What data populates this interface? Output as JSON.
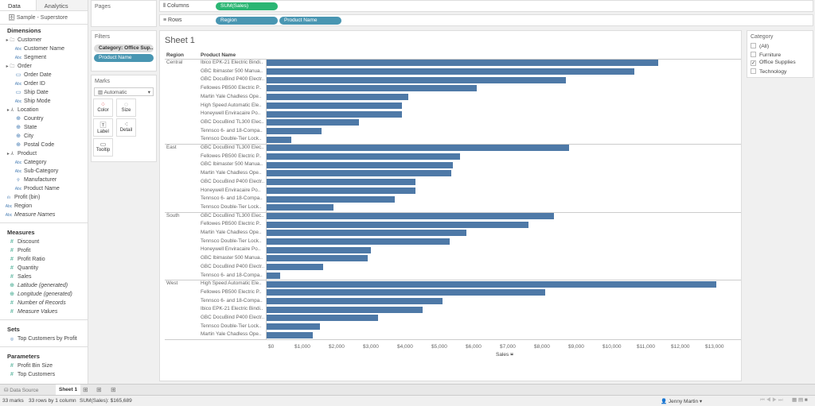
{
  "left": {
    "tabs": [
      "Data",
      "Analytics"
    ],
    "datasource": "Sample - Superstore",
    "dimensions_title": "Dimensions",
    "dimensions": [
      {
        "label": "Customer",
        "type": "folder"
      },
      {
        "label": "Customer Name",
        "type": "abc",
        "indent": 1
      },
      {
        "label": "Segment",
        "type": "abc",
        "indent": 1
      },
      {
        "label": "Order",
        "type": "folder"
      },
      {
        "label": "Order Date",
        "type": "date",
        "indent": 1
      },
      {
        "label": "Order ID",
        "type": "abc",
        "indent": 1
      },
      {
        "label": "Ship Date",
        "type": "date",
        "indent": 1
      },
      {
        "label": "Ship Mode",
        "type": "abc",
        "indent": 1
      },
      {
        "label": "Location",
        "type": "hier"
      },
      {
        "label": "Country",
        "type": "geo",
        "indent": 1
      },
      {
        "label": "State",
        "type": "geo",
        "indent": 1
      },
      {
        "label": "City",
        "type": "geo",
        "indent": 1
      },
      {
        "label": "Postal Code",
        "type": "geo",
        "indent": 1
      },
      {
        "label": "Product",
        "type": "hier"
      },
      {
        "label": "Category",
        "type": "abc",
        "indent": 1
      },
      {
        "label": "Sub-Category",
        "type": "abc",
        "indent": 1
      },
      {
        "label": "Manufacturer",
        "type": "link",
        "indent": 1
      },
      {
        "label": "Product Name",
        "type": "abc",
        "indent": 1
      },
      {
        "label": "Profit (bin)",
        "type": "bin"
      },
      {
        "label": "Region",
        "type": "abc"
      },
      {
        "label": "Measure Names",
        "type": "abc",
        "italic": true
      }
    ],
    "measures_title": "Measures",
    "measures": [
      {
        "label": "Discount"
      },
      {
        "label": "Profit"
      },
      {
        "label": "Profit Ratio"
      },
      {
        "label": "Quantity"
      },
      {
        "label": "Sales"
      },
      {
        "label": "Latitude (generated)",
        "italic": true,
        "geo": true
      },
      {
        "label": "Longitude (generated)",
        "italic": true,
        "geo": true
      },
      {
        "label": "Number of Records",
        "italic": true
      },
      {
        "label": "Measure Values",
        "italic": true
      }
    ],
    "sets_title": "Sets",
    "sets": [
      "Top Customers by Profit"
    ],
    "params_title": "Parameters",
    "params": [
      "Profit Bin Size",
      "Top Customers"
    ]
  },
  "shelves": {
    "pages": "Pages",
    "filters": "Filters",
    "filter_pills": [
      "Category: Office Sup..",
      "Product Name"
    ],
    "marks": "Marks",
    "mark_type": "Automatic",
    "mark_buttons": [
      "Color",
      "Size",
      "Label",
      "Detail",
      "Tooltip"
    ],
    "columns": "Columns",
    "columns_pill": "SUM(Sales)",
    "rows": "Rows",
    "rows_pills": [
      "Region",
      "Product Name"
    ]
  },
  "sheet": {
    "title": "Sheet 1",
    "col_region": "Region",
    "col_product": "Product Name",
    "axis_title": "Sales"
  },
  "chart_data": {
    "type": "bar",
    "orientation": "horizontal",
    "xlabel": "Sales",
    "xlim": [
      0,
      13000
    ],
    "ticks": [
      "$0",
      "$1,000",
      "$2,000",
      "$3,000",
      "$4,000",
      "$5,000",
      "$6,000",
      "$7,000",
      "$8,000",
      "$9,000",
      "$10,000",
      "$11,000",
      "$12,000",
      "$13,000"
    ],
    "groups": [
      {
        "region": "Central",
        "rows": [
          [
            "Ibico EPK-21 Electric Bindi..",
            11400
          ],
          [
            "GBC Ibimaster 500 Manua..",
            10700
          ],
          [
            "GBC DocuBind P400 Electr..",
            8700
          ],
          [
            "Fellowes PB500 Electric P..",
            6100
          ],
          [
            "Martin Yale Chadless Ope..",
            4100
          ],
          [
            "High Speed Automatic Ele..",
            3900
          ],
          [
            "Honeywell Enviracaire Po..",
            3900
          ],
          [
            "GBC DocuBind TL300 Elec..",
            2650
          ],
          [
            "Tennsco 6- and 18-Compa..",
            1550
          ],
          [
            "Tennsco Double-Tier Lock..",
            670
          ]
        ]
      },
      {
        "region": "East",
        "rows": [
          [
            "GBC DocuBind TL300 Elec..",
            8800
          ],
          [
            "Fellowes PB500 Electric P..",
            5600
          ],
          [
            "GBC Ibimaster 500 Manua..",
            5400
          ],
          [
            "Martin Yale Chadless Ope..",
            5350
          ],
          [
            "GBC DocuBind P400 Electr..",
            4300
          ],
          [
            "Honeywell Enviracaire Po..",
            4300
          ],
          [
            "Tennsco 6- and 18-Compa..",
            3700
          ],
          [
            "Tennsco Double-Tier Lock..",
            1900
          ]
        ]
      },
      {
        "region": "South",
        "rows": [
          [
            "GBC DocuBind TL300 Elec..",
            8350
          ],
          [
            "Fellowes PB500 Electric P..",
            7600
          ],
          [
            "Martin Yale Chadless Ope..",
            5800
          ],
          [
            "Tennsco Double-Tier Lock..",
            5300
          ],
          [
            "Honeywell Enviracaire Po..",
            3000
          ],
          [
            "GBC Ibimaster 500 Manua..",
            2900
          ],
          [
            "GBC DocuBind P400 Electr..",
            1600
          ],
          [
            "Tennsco 6- and 18-Compa..",
            350
          ]
        ]
      },
      {
        "region": "West",
        "rows": [
          [
            "High Speed Automatic Ele..",
            13100
          ],
          [
            "Fellowes PB500 Electric P..",
            8100
          ],
          [
            "Tennsco 6- and 18-Compa..",
            5100
          ],
          [
            "Ibico EPK-21 Electric Bindi..",
            4500
          ],
          [
            "GBC DocuBind P400 Electr..",
            3200
          ],
          [
            "Tennsco Double-Tier Lock..",
            1500
          ],
          [
            "Martin Yale Chadless Ope..",
            1300
          ]
        ]
      }
    ],
    "bar_color": "#4e79a7"
  },
  "category_filter": {
    "title": "Category",
    "options": [
      {
        "label": "(All)",
        "checked": false
      },
      {
        "label": "Furniture",
        "checked": false
      },
      {
        "label": "Office Supplies",
        "checked": true
      },
      {
        "label": "Technology",
        "checked": false
      }
    ]
  },
  "tabs_bar": {
    "data_source": "Data Source",
    "sheet": "Sheet 1"
  },
  "status": {
    "marks": "33 marks",
    "rows": "33 rows by 1 column",
    "sum": "SUM(Sales): $165,689",
    "user": "Jenny Martin"
  }
}
